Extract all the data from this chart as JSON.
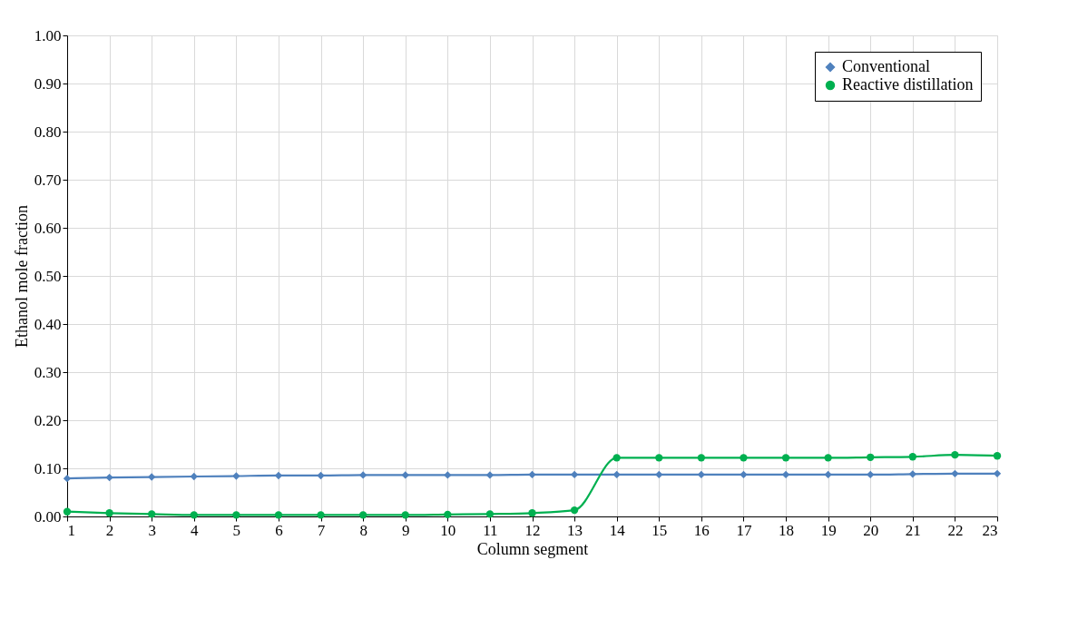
{
  "chart_data": {
    "type": "line",
    "xlabel": "Column segment",
    "ylabel": "Ethanol mole fraction",
    "x": [
      1,
      2,
      3,
      4,
      5,
      6,
      7,
      8,
      9,
      10,
      11,
      12,
      13,
      14,
      15,
      16,
      17,
      18,
      19,
      20,
      21,
      22,
      23
    ],
    "xlim": [
      1,
      23
    ],
    "xticks": [
      1,
      2,
      3,
      4,
      5,
      6,
      7,
      8,
      9,
      10,
      11,
      12,
      13,
      14,
      15,
      16,
      17,
      18,
      19,
      20,
      21,
      22,
      23
    ],
    "ylim": [
      0,
      1
    ],
    "yticks": [
      {
        "value": 0,
        "label": "0.00"
      },
      {
        "value": 0.1,
        "label": "0.10"
      },
      {
        "value": 0.2,
        "label": "0.20"
      },
      {
        "value": 0.3,
        "label": "0.30"
      },
      {
        "value": 0.4,
        "label": "0.40"
      },
      {
        "value": 0.5,
        "label": "0.50"
      },
      {
        "value": 0.6,
        "label": "0.60"
      },
      {
        "value": 0.7,
        "label": "0.70"
      },
      {
        "value": 0.8,
        "label": "0.80"
      },
      {
        "value": 0.9,
        "label": "0.90"
      },
      {
        "value": 1,
        "label": "1.00"
      }
    ],
    "grid": true,
    "legend": "top right",
    "line_style": "solid",
    "series": [
      {
        "name": "Conventional",
        "color": "#4f81bd",
        "marker": "diamond",
        "values": [
          0.079,
          0.081,
          0.082,
          0.083,
          0.084,
          0.085,
          0.085,
          0.086,
          0.086,
          0.086,
          0.086,
          0.087,
          0.087,
          0.087,
          0.087,
          0.087,
          0.087,
          0.087,
          0.087,
          0.087,
          0.088,
          0.089,
          0.089
        ]
      },
      {
        "name": "Reactive distillation",
        "color": "#00b050",
        "marker": "circle",
        "values": [
          0.01,
          0.007,
          0.005,
          0.003,
          0.003,
          0.003,
          0.003,
          0.003,
          0.003,
          0.004,
          0.005,
          0.007,
          0.013,
          0.122,
          0.122,
          0.122,
          0.122,
          0.122,
          0.122,
          0.123,
          0.124,
          0.128,
          0.126
        ]
      }
    ]
  }
}
